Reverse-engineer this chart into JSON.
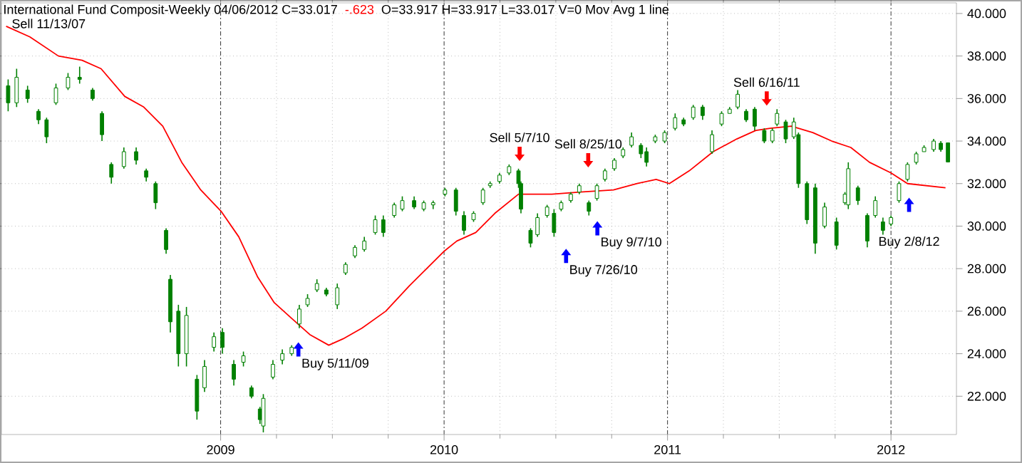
{
  "chart_data": {
    "type": "candlestick",
    "title": "International Fund Composit-Weekly  04/06/2012  C=33.017",
    "subtitle": "O=33.917  H=33.917  L=33.017  V=0  Mov Avg 1 line",
    "color": "#008000",
    "x": [
      2008.049,
      2008.087,
      2008.136,
      2008.185,
      2008.221,
      2008.263,
      2008.317,
      2008.369,
      2008.427,
      2008.469,
      2008.511,
      2008.567,
      2008.622,
      2008.667,
      2008.709,
      2008.756,
      2008.775,
      2008.811,
      2008.847,
      2008.894,
      2008.928,
      2008.97,
      2009.008,
      2009.059,
      2009.102,
      2009.138,
      2009.176,
      2009.191,
      2009.234,
      2009.276,
      2009.318,
      2009.352,
      2009.389,
      2009.431,
      2009.473,
      2009.522,
      2009.559,
      2009.601,
      2009.643,
      2009.692,
      2009.728,
      2009.777,
      2009.813,
      2009.866,
      2009.909,
      2009.951,
      2010.004,
      2010.053,
      2010.089,
      2010.132,
      2010.174,
      2010.206,
      2010.248,
      2010.291,
      2010.333,
      2010.344,
      2010.387,
      2010.418,
      2010.461,
      2010.492,
      2010.524,
      2010.567,
      2010.605,
      2010.648,
      2010.684,
      2010.72,
      2010.762,
      2010.801,
      2010.839,
      2010.881,
      2010.906,
      2010.945,
      2010.987,
      2011.034,
      2011.072,
      2011.115,
      2011.157,
      2011.199,
      2011.242,
      2011.278,
      2011.314,
      2011.352,
      2011.39,
      2011.433,
      2011.469,
      2011.49,
      2011.529,
      2011.565,
      2011.586,
      2011.624,
      2011.661,
      2011.703,
      2011.756,
      2011.794,
      2011.809,
      2011.852,
      2011.894,
      2011.93,
      2011.964,
      2012.0,
      2012.036,
      2012.074,
      2012.113,
      2012.148,
      2012.191,
      2012.223,
      2012.255
    ],
    "ohlc": [
      [
        36.6,
        36.9,
        35.4,
        35.8
      ],
      [
        35.8,
        37.4,
        35.6,
        37.0
      ],
      [
        36.4,
        36.6,
        35.8,
        36.0
      ],
      [
        35.4,
        35.5,
        34.8,
        35.0
      ],
      [
        35.0,
        35.1,
        33.9,
        34.2
      ],
      [
        35.8,
        36.7,
        35.7,
        36.5
      ],
      [
        36.5,
        37.2,
        36.4,
        37.0
      ],
      [
        37.0,
        37.5,
        36.7,
        36.9
      ],
      [
        36.4,
        36.5,
        35.9,
        36.0
      ],
      [
        35.3,
        35.4,
        34.0,
        34.3
      ],
      [
        32.9,
        33.0,
        32.0,
        32.3
      ],
      [
        32.8,
        33.7,
        32.7,
        33.5
      ],
      [
        33.5,
        33.7,
        32.9,
        33.1
      ],
      [
        32.6,
        32.7,
        32.1,
        32.3
      ],
      [
        32.0,
        32.1,
        30.8,
        31.1
      ],
      [
        29.8,
        29.9,
        28.7,
        28.9
      ],
      [
        27.5,
        27.7,
        25.0,
        25.5
      ],
      [
        26.0,
        26.3,
        23.4,
        24.0
      ],
      [
        24.0,
        26.2,
        23.4,
        25.8
      ],
      [
        22.8,
        23.0,
        20.9,
        21.3
      ],
      [
        22.4,
        23.7,
        22.2,
        23.4
      ],
      [
        24.3,
        25.0,
        24.1,
        24.8
      ],
      [
        25.0,
        25.2,
        24.0,
        24.3
      ],
      [
        23.5,
        23.7,
        22.5,
        22.8
      ],
      [
        23.6,
        24.1,
        23.4,
        23.9
      ],
      [
        22.4,
        22.5,
        21.9,
        22.0
      ],
      [
        21.4,
        21.5,
        20.7,
        20.9
      ],
      [
        20.6,
        22.1,
        20.3,
        21.9
      ],
      [
        22.9,
        23.7,
        22.8,
        23.5
      ],
      [
        23.7,
        24.2,
        23.5,
        24.0
      ],
      [
        24.0,
        24.4,
        23.9,
        24.3
      ],
      [
        25.4,
        26.3,
        25.2,
        26.1
      ],
      [
        26.3,
        26.8,
        26.2,
        26.6
      ],
      [
        27.0,
        27.5,
        26.9,
        27.3
      ],
      [
        27.0,
        27.1,
        26.7,
        26.8
      ],
      [
        26.3,
        27.3,
        26.1,
        27.1
      ],
      [
        27.8,
        28.3,
        27.7,
        28.2
      ],
      [
        28.6,
        29.1,
        28.5,
        29.0
      ],
      [
        28.9,
        29.5,
        28.8,
        29.3
      ],
      [
        29.7,
        30.5,
        29.6,
        30.3
      ],
      [
        30.3,
        30.5,
        29.5,
        29.7
      ],
      [
        30.5,
        31.1,
        30.4,
        31.0
      ],
      [
        30.8,
        31.4,
        30.7,
        31.2
      ],
      [
        31.2,
        31.4,
        30.8,
        30.9
      ],
      [
        30.8,
        31.2,
        30.7,
        31.1
      ],
      [
        31.0,
        31.2,
        30.8,
        31.1
      ],
      [
        31.5,
        31.8,
        31.4,
        31.7
      ],
      [
        31.7,
        31.8,
        30.5,
        30.7
      ],
      [
        30.5,
        30.7,
        29.6,
        29.8
      ],
      [
        30.3,
        30.7,
        30.2,
        30.6
      ],
      [
        31.1,
        31.8,
        31.0,
        31.7
      ],
      [
        31.9,
        32.1,
        31.8,
        32.0
      ],
      [
        32.1,
        32.5,
        32.0,
        32.4
      ],
      [
        32.5,
        32.9,
        32.4,
        32.8
      ],
      [
        32.6,
        32.7,
        31.8,
        32.0
      ],
      [
        32.0,
        32.1,
        30.6,
        30.8
      ],
      [
        29.8,
        29.9,
        29.0,
        29.2
      ],
      [
        29.6,
        30.6,
        29.5,
        30.4
      ],
      [
        30.5,
        31.0,
        30.4,
        30.9
      ],
      [
        30.6,
        30.8,
        29.5,
        29.7
      ],
      [
        30.8,
        31.2,
        30.7,
        31.1
      ],
      [
        31.2,
        31.6,
        31.1,
        31.5
      ],
      [
        31.6,
        32.0,
        31.5,
        31.9
      ],
      [
        31.1,
        31.2,
        30.5,
        30.7
      ],
      [
        31.3,
        32.0,
        31.2,
        31.9
      ],
      [
        32.2,
        32.7,
        32.1,
        32.6
      ],
      [
        32.7,
        33.2,
        32.6,
        33.1
      ],
      [
        33.3,
        33.7,
        33.2,
        33.6
      ],
      [
        33.8,
        34.4,
        33.7,
        34.2
      ],
      [
        33.8,
        33.9,
        33.2,
        33.4
      ],
      [
        33.5,
        33.7,
        32.8,
        33.0
      ],
      [
        34.0,
        34.3,
        33.9,
        34.2
      ],
      [
        34.0,
        34.5,
        33.9,
        34.4
      ],
      [
        34.6,
        35.3,
        34.5,
        35.1
      ],
      [
        35.0,
        35.1,
        34.7,
        34.8
      ],
      [
        35.1,
        35.7,
        35.0,
        35.6
      ],
      [
        35.6,
        35.7,
        35.0,
        35.2
      ],
      [
        33.5,
        34.5,
        33.4,
        34.3
      ],
      [
        34.8,
        35.4,
        34.7,
        35.3
      ],
      [
        35.3,
        35.6,
        35.3,
        35.5
      ],
      [
        35.6,
        36.4,
        35.5,
        36.2
      ],
      [
        35.4,
        35.5,
        34.9,
        35.0
      ],
      [
        35.5,
        35.6,
        34.5,
        34.7
      ],
      [
        34.5,
        34.6,
        33.9,
        34.0
      ],
      [
        34.0,
        34.6,
        33.9,
        34.5
      ],
      [
        34.8,
        35.5,
        34.7,
        35.3
      ],
      [
        34.9,
        35.0,
        33.9,
        34.1
      ],
      [
        34.2,
        35.1,
        34.1,
        34.9
      ],
      [
        34.3,
        34.4,
        31.8,
        32.0
      ],
      [
        32.0,
        32.1,
        30.1,
        30.3
      ],
      [
        31.8,
        32.0,
        28.7,
        29.2
      ],
      [
        30.0,
        31.1,
        29.9,
        30.9
      ],
      [
        30.2,
        30.4,
        28.9,
        29.1
      ],
      [
        31.1,
        31.6,
        31.0,
        31.5
      ],
      [
        31.0,
        33.0,
        30.8,
        32.7
      ],
      [
        31.8,
        31.9,
        31.0,
        31.2
      ],
      [
        30.5,
        30.6,
        29.0,
        29.3
      ],
      [
        30.5,
        31.4,
        30.4,
        31.2
      ],
      [
        30.2,
        30.4,
        29.6,
        29.8
      ],
      [
        30.1,
        30.5,
        30.0,
        30.4
      ],
      [
        31.2,
        32.1,
        31.1,
        32.0
      ],
      [
        32.2,
        33.0,
        32.1,
        32.9
      ],
      [
        33.0,
        33.5,
        32.9,
        33.4
      ],
      [
        33.5,
        33.8,
        33.5,
        33.7
      ],
      [
        33.6,
        34.1,
        33.5,
        34.0
      ],
      [
        33.9,
        34.0,
        33.5,
        33.6
      ],
      [
        33.917,
        33.917,
        33.017,
        33.017
      ]
    ],
    "series": [
      {
        "type": "line",
        "color": "#ff0000",
        "x": [
          2008.04,
          2008.146,
          2008.274,
          2008.38,
          2008.465,
          2008.571,
          2008.656,
          2008.741,
          2008.826,
          2008.911,
          2009.002,
          2009.081,
          2009.166,
          2009.24,
          2009.314,
          2009.399,
          2009.484,
          2009.548,
          2009.632,
          2009.739,
          2009.845,
          2009.998,
          2010.057,
          2010.142,
          2010.227,
          2010.333,
          2010.482,
          2010.609,
          2010.758,
          2010.864,
          2010.949,
          2011.008,
          2011.097,
          2011.204,
          2011.31,
          2011.395,
          2011.459,
          2011.554,
          2011.65,
          2011.735,
          2011.82,
          2011.904,
          2012.0,
          2012.074,
          2012.159,
          2012.244
        ],
        "values": [
          39.4,
          38.9,
          38.0,
          37.8,
          37.4,
          36.1,
          35.6,
          34.7,
          33.0,
          31.7,
          30.7,
          29.5,
          27.6,
          26.4,
          25.7,
          24.9,
          24.4,
          24.7,
          25.2,
          26.0,
          27.2,
          28.8,
          29.3,
          29.7,
          30.6,
          31.5,
          31.5,
          31.6,
          31.7,
          32.0,
          32.2,
          32.0,
          32.6,
          33.5,
          34.1,
          34.5,
          34.6,
          34.7,
          34.4,
          34.0,
          33.7,
          33.0,
          32.5,
          32.0,
          31.9,
          31.8
        ]
      },
      {
        "type": "scatter",
        "color": "#0000ff",
        "x": [
          2009.348,
          2010.546,
          2010.686,
          2012.081
        ],
        "values": [
          24.2,
          28.6,
          29.9,
          31.0
        ],
        "value_labels": [
          "Buy 5/11/09",
          "Buy 7/26/10",
          "Buy 9/7/10",
          "Buy 2/8/12"
        ]
      },
      {
        "type": "scatter",
        "color": "#ff0000",
        "x": [
          2010.338,
          2010.645,
          2011.444
        ],
        "values": [
          33.4,
          33.1,
          36.0
        ],
        "value_labels": [
          "Sell 5/7/10",
          "Sell 8/25/10",
          "Sell 6/16/11"
        ]
      }
    ],
    "annotations": [
      "-.623",
      "Sell 11/13/07"
    ],
    "xlim": [
      2008.019,
      2012.293
    ],
    "ylim": [
      20.2,
      40.5
    ],
    "xticks": [
      2009,
      2010,
      2011,
      2012
    ],
    "yticks": [
      {
        "value": 22,
        "label": "22.000"
      },
      {
        "value": 24,
        "label": "24.000"
      },
      {
        "value": 26,
        "label": "26.000"
      },
      {
        "value": 28,
        "label": "28.000"
      },
      {
        "value": 30,
        "label": "30.000"
      },
      {
        "value": 32,
        "label": "32.000"
      },
      {
        "value": 34,
        "label": "34.000"
      },
      {
        "value": 36,
        "label": "36.000"
      },
      {
        "value": 38,
        "label": "38.000"
      },
      {
        "value": 40,
        "label": "40.000"
      }
    ],
    "grid": true
  }
}
